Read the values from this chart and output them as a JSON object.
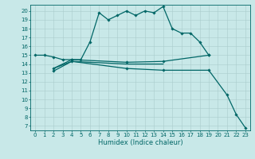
{
  "xlabel": "Humidex (Indice chaleur)",
  "bg_color": "#c8e8e8",
  "grid_color": "#aacccc",
  "line_color": "#006666",
  "xlim": [
    -0.5,
    23.5
  ],
  "ylim": [
    6.5,
    20.7
  ],
  "yticks": [
    7,
    8,
    9,
    10,
    11,
    12,
    13,
    14,
    15,
    16,
    17,
    18,
    19,
    20
  ],
  "xticks": [
    0,
    1,
    2,
    3,
    4,
    5,
    6,
    7,
    8,
    9,
    10,
    11,
    12,
    13,
    14,
    15,
    16,
    17,
    18,
    19,
    20,
    21,
    22,
    23
  ],
  "s1x": [
    0,
    1,
    2,
    3,
    4,
    5,
    6,
    7,
    8,
    9,
    10,
    11,
    12,
    13,
    14,
    15,
    16,
    17,
    18,
    19
  ],
  "s1y": [
    15.0,
    15.0,
    14.8,
    14.5,
    14.5,
    14.5,
    16.5,
    19.8,
    19.0,
    19.5,
    20.0,
    19.5,
    20.0,
    19.8,
    20.5,
    18.0,
    17.5,
    17.5,
    16.5,
    15.0
  ],
  "s2x": [
    2,
    4,
    10,
    14,
    19
  ],
  "s2y": [
    13.5,
    14.5,
    14.2,
    14.3,
    15.0
  ],
  "s3x": [
    2,
    4,
    10,
    14,
    19,
    21,
    22,
    23
  ],
  "s3y": [
    13.2,
    14.3,
    13.5,
    13.3,
    13.3,
    10.5,
    8.3,
    6.8
  ],
  "s4x": [
    2,
    4,
    10,
    14
  ],
  "s4y": [
    13.5,
    14.3,
    14.0,
    14.0
  ],
  "tick_fontsize": 5.0,
  "xlabel_fontsize": 6.0,
  "marker": "D",
  "markersize": 1.8,
  "linewidth": 0.9
}
